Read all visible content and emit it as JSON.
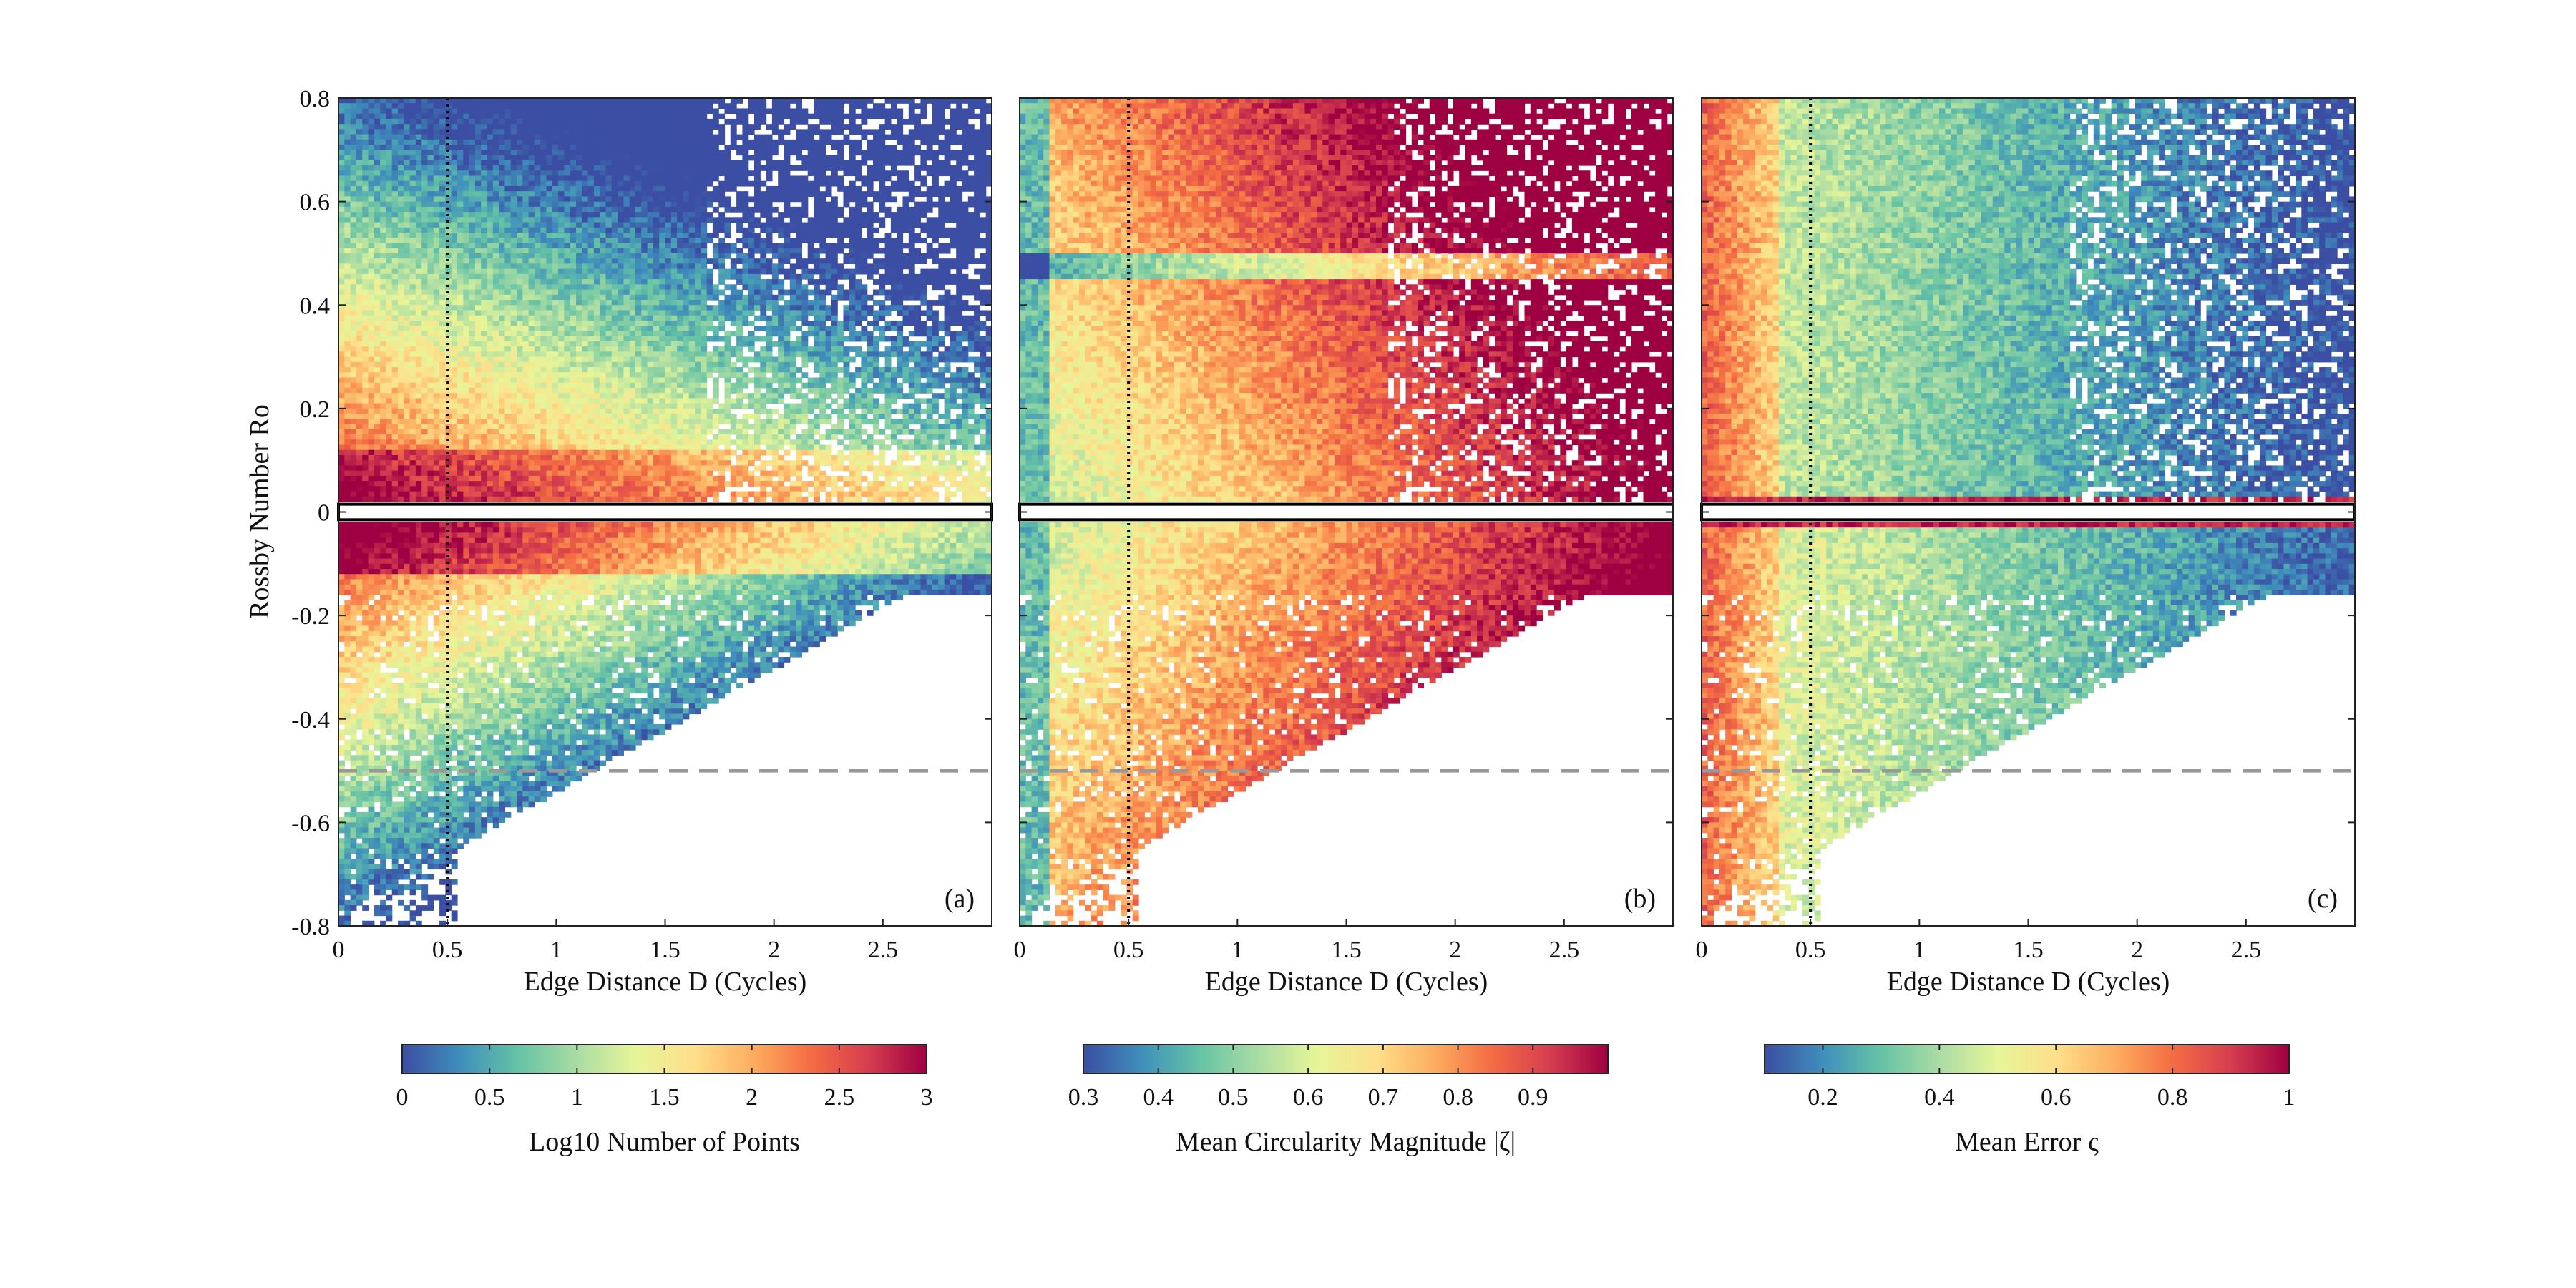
{
  "chart_data": {
    "type": "heatmap",
    "ylabel": "Rossby Number Ro",
    "ylim": [
      -0.8,
      0.8
    ],
    "yticks": [
      "0.8",
      "0.6",
      "0.4",
      "0.2",
      "0",
      "-0.2",
      "-0.4",
      "-0.6",
      "-0.8"
    ],
    "ytick_values": [
      0.8,
      0.6,
      0.4,
      0.2,
      0,
      -0.2,
      -0.4,
      -0.6,
      -0.8
    ],
    "reference_lines": {
      "vertical_dotted_x": 0.5,
      "horizontal_dashed_y": -0.5,
      "horizontal_solid_band": [
        -0.015,
        0.015
      ]
    },
    "panels": [
      {
        "tag": "(a)",
        "xlabel": "Edge Distance D (Cycles)",
        "xlim": [
          0,
          3
        ],
        "xticks": [
          "0",
          "0.5",
          "1",
          "1.5",
          "2",
          "2.5"
        ],
        "xtick_values": [
          0,
          0.5,
          1,
          1.5,
          2,
          2.5
        ],
        "colorbar": {
          "label": "Log10 Number of Points",
          "range": [
            0,
            3
          ],
          "ticks": [
            "0",
            "0.5",
            "1",
            "1.5",
            "2",
            "2.5",
            "3"
          ],
          "tick_values": [
            0,
            0.5,
            1,
            1.5,
            2,
            2.5,
            3
          ]
        }
      },
      {
        "tag": "(b)",
        "xlabel": "Edge Distance D (Cycles)",
        "xlim": [
          0,
          3
        ],
        "xticks": [
          "0",
          "0.5",
          "1",
          "1.5",
          "2",
          "2.5"
        ],
        "xtick_values": [
          0,
          0.5,
          1,
          1.5,
          2,
          2.5
        ],
        "colorbar": {
          "label": "Mean Circularity Magnitude |ζ|",
          "range": [
            0.3,
            1.0
          ],
          "ticks": [
            "0.3",
            "0.4",
            "0.5",
            "0.6",
            "0.7",
            "0.8",
            "0.9"
          ],
          "tick_values": [
            0.3,
            0.4,
            0.5,
            0.6,
            0.7,
            0.8,
            0.9
          ]
        }
      },
      {
        "tag": "(c)",
        "xlabel": "Edge Distance D (Cycles)",
        "xlim": [
          0,
          3
        ],
        "xticks": [
          "0",
          "0.5",
          "1",
          "1.5",
          "2",
          "2.5"
        ],
        "xtick_values": [
          0,
          0.5,
          1,
          1.5,
          2,
          2.5
        ],
        "colorbar": {
          "label": "Mean Error ς",
          "range": [
            0.1,
            1.0
          ],
          "ticks": [
            "0.2",
            "0.4",
            "0.6",
            "0.8",
            "1"
          ],
          "tick_values": [
            0.2,
            0.4,
            0.6,
            0.8,
            1.0
          ]
        }
      }
    ],
    "colormap": [
      "#3b4ea3",
      "#3f8fbc",
      "#66c3a5",
      "#aadca4",
      "#e6f598",
      "#fee08b",
      "#fdae61",
      "#f46d43",
      "#d53e4f",
      "#9e0142"
    ]
  }
}
